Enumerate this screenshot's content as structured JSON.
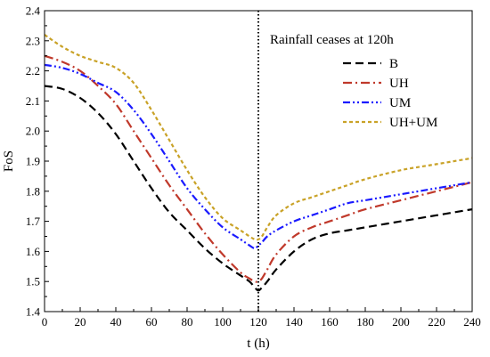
{
  "chart_data": {
    "type": "line",
    "xlabel": "t (h)",
    "ylabel": "FoS",
    "xlim": [
      0,
      240
    ],
    "ylim": [
      1.4,
      2.4
    ],
    "xticks": [
      0,
      20,
      40,
      60,
      80,
      100,
      120,
      140,
      160,
      180,
      200,
      220,
      240
    ],
    "yticks": [
      "1.4",
      "1.5",
      "1.6",
      "1.7",
      "1.8",
      "1.9",
      "2.0",
      "2.1",
      "2.2",
      "2.3",
      "2.4"
    ],
    "grid": false,
    "legend_position": "top-right",
    "annotation": {
      "text": "Rainfall ceases at 120h",
      "x": 120
    },
    "series": [
      {
        "name": "B",
        "color": "#000000",
        "dash": "9,5",
        "x": [
          0,
          10,
          20,
          30,
          40,
          50,
          60,
          70,
          80,
          90,
          100,
          110,
          115,
          118,
          120,
          122,
          125,
          130,
          140,
          150,
          160,
          170,
          180,
          200,
          220,
          240
        ],
        "y": [
          2.15,
          2.14,
          2.11,
          2.06,
          1.99,
          1.9,
          1.81,
          1.73,
          1.67,
          1.61,
          1.56,
          1.52,
          1.5,
          1.48,
          1.47,
          1.48,
          1.5,
          1.54,
          1.6,
          1.64,
          1.66,
          1.67,
          1.68,
          1.7,
          1.72,
          1.74
        ]
      },
      {
        "name": "UH",
        "color": "#c0392b",
        "dash": "10,4,2,4",
        "x": [
          0,
          10,
          20,
          30,
          40,
          50,
          60,
          70,
          80,
          90,
          100,
          110,
          115,
          118,
          120,
          122,
          125,
          130,
          140,
          150,
          160,
          170,
          180,
          200,
          220,
          240
        ],
        "y": [
          2.25,
          2.23,
          2.2,
          2.15,
          2.09,
          2.0,
          1.91,
          1.82,
          1.74,
          1.66,
          1.59,
          1.53,
          1.51,
          1.5,
          1.5,
          1.51,
          1.54,
          1.59,
          1.65,
          1.68,
          1.7,
          1.72,
          1.74,
          1.77,
          1.8,
          1.83
        ]
      },
      {
        "name": "UM",
        "color": "#1a1aff",
        "dash": "8,3,2,3,2,3",
        "x": [
          0,
          10,
          20,
          30,
          40,
          50,
          60,
          70,
          80,
          90,
          100,
          110,
          115,
          118,
          120,
          122,
          125,
          130,
          140,
          150,
          160,
          170,
          180,
          200,
          220,
          240
        ],
        "y": [
          2.22,
          2.21,
          2.19,
          2.16,
          2.13,
          2.07,
          1.99,
          1.9,
          1.81,
          1.74,
          1.68,
          1.64,
          1.62,
          1.61,
          1.62,
          1.63,
          1.65,
          1.67,
          1.7,
          1.72,
          1.74,
          1.76,
          1.77,
          1.79,
          1.81,
          1.83
        ]
      },
      {
        "name": "UH+UM",
        "color": "#c9a227",
        "dash": "4,3",
        "x": [
          0,
          10,
          20,
          30,
          40,
          50,
          60,
          70,
          80,
          90,
          100,
          110,
          115,
          118,
          120,
          122,
          125,
          130,
          140,
          150,
          160,
          170,
          180,
          200,
          220,
          240
        ],
        "y": [
          2.32,
          2.28,
          2.25,
          2.23,
          2.21,
          2.16,
          2.07,
          1.97,
          1.87,
          1.78,
          1.71,
          1.67,
          1.65,
          1.64,
          1.64,
          1.65,
          1.68,
          1.72,
          1.76,
          1.78,
          1.8,
          1.82,
          1.84,
          1.87,
          1.89,
          1.91
        ]
      }
    ]
  }
}
